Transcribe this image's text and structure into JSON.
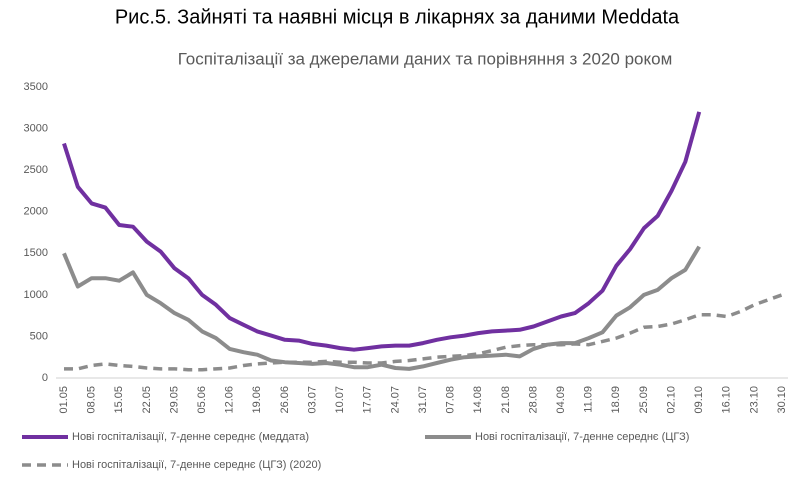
{
  "heading": "Рис.5. Зайняті та наявні місця в лікарнях за даними Meddata",
  "chart_data": {
    "type": "line",
    "title": "Госпіталізації за джерелами даних та порівняння з 2020 роком",
    "categories": [
      "01.05",
      null,
      "08.05",
      null,
      "15.05",
      null,
      "22.05",
      null,
      "29.05",
      null,
      "05.06",
      null,
      "12.06",
      null,
      "19.06",
      null,
      "26.06",
      null,
      "03.07",
      null,
      "10.07",
      null,
      "17.07",
      null,
      "24.07",
      null,
      "31.07",
      null,
      "07.08",
      null,
      "14.08",
      null,
      "21.08",
      null,
      "28.08",
      null,
      "04.09",
      null,
      "11.09",
      null,
      "18.09",
      null,
      "25.09",
      null,
      "02.10",
      null,
      "09.10",
      null,
      "16.10",
      null,
      "23.10",
      null,
      "30.10"
    ],
    "series": [
      {
        "name": "Нові госпіталізації, 7-денне середнє (меддата)",
        "color": "#7030a0",
        "dashed": false,
        "values": [
          2820,
          2300,
          2100,
          2050,
          1840,
          1820,
          1640,
          1520,
          1320,
          1200,
          1000,
          880,
          720,
          640,
          560,
          510,
          460,
          450,
          410,
          390,
          360,
          340,
          360,
          380,
          390,
          390,
          420,
          460,
          490,
          510,
          540,
          560,
          570,
          580,
          620,
          680,
          740,
          780,
          900,
          1050,
          1350,
          1550,
          1800,
          1950,
          2250,
          2600,
          3200,
          null,
          null,
          null,
          null,
          null,
          null
        ]
      },
      {
        "name": "Нові госпіталізації, 7-денне середнє (ЦГЗ)",
        "color": "#8c8c8c",
        "dashed": false,
        "values": [
          1500,
          1100,
          1200,
          1200,
          1170,
          1270,
          1000,
          900,
          780,
          700,
          560,
          480,
          350,
          310,
          280,
          210,
          190,
          180,
          170,
          180,
          160,
          130,
          130,
          160,
          120,
          110,
          140,
          180,
          220,
          250,
          260,
          270,
          280,
          260,
          350,
          400,
          420,
          420,
          480,
          550,
          750,
          850,
          1000,
          1060,
          1200,
          1300,
          1580,
          null,
          null,
          null,
          null,
          null,
          null
        ]
      },
      {
        "name": "Нові госпіталізації, 7-денне середнє (ЦГЗ) (2020)",
        "color": "#8c8c8c",
        "dashed": true,
        "values": [
          110,
          110,
          150,
          170,
          150,
          140,
          120,
          110,
          110,
          100,
          100,
          110,
          120,
          150,
          170,
          180,
          190,
          190,
          190,
          200,
          190,
          190,
          180,
          180,
          200,
          210,
          230,
          250,
          260,
          270,
          290,
          330,
          370,
          390,
          400,
          400,
          400,
          410,
          400,
          440,
          480,
          540,
          610,
          620,
          650,
          700,
          760,
          760,
          740,
          800,
          880,
          940,
          1000
        ]
      }
    ],
    "ylim": [
      0,
      3500
    ],
    "yticks": [
      0,
      500,
      1000,
      1500,
      2000,
      2500,
      3000,
      3500
    ],
    "grid": false
  }
}
